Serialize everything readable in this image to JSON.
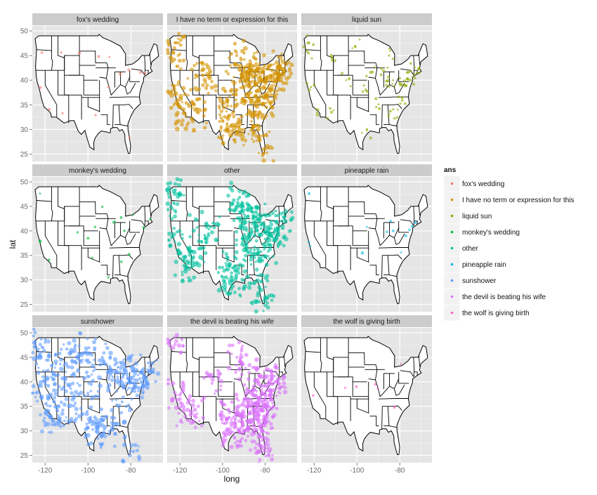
{
  "chart_data": {
    "type": "scatter",
    "xlabel": "long",
    "ylabel": "lat",
    "xlim": [
      -126,
      -65
    ],
    "ylim": [
      23.5,
      51
    ],
    "x_ticks": [
      -120,
      -100,
      -80
    ],
    "y_ticks": [
      25,
      30,
      35,
      40,
      45,
      50
    ],
    "grid": true,
    "legend_position": "right",
    "legend_title": "ans",
    "facet_grid": "3x3",
    "panels": [
      {
        "name": "fox's wedding",
        "color": "#F8766D",
        "density": "sparse",
        "points": [
          [
            -121.5,
            45.6
          ],
          [
            -112.5,
            45.6
          ],
          [
            -104,
            45.5
          ],
          [
            -95,
            44.8
          ],
          [
            -90,
            44.7
          ],
          [
            -85,
            41.3
          ],
          [
            -81,
            42.1
          ],
          [
            -75.5,
            41.6
          ],
          [
            -73.5,
            41.5
          ],
          [
            -122.2,
            38.5
          ],
          [
            -118,
            34.1
          ],
          [
            -111.9,
            33.3
          ],
          [
            -96.5,
            32.9
          ],
          [
            -90.5,
            38.6
          ],
          [
            -80.6,
            28.3
          ]
        ]
      },
      {
        "name": "I have no term or expression for this",
        "color": "#D39200",
        "density": "dense",
        "points": [
          [
            -122.3,
            47.6
          ],
          [
            -122.7,
            45.5
          ],
          [
            -118.3,
            34.1
          ],
          [
            -117.2,
            32.7
          ],
          [
            -121.9,
            37.3
          ],
          [
            -112,
            33.5
          ],
          [
            -105,
            39.7
          ],
          [
            -111.9,
            40.8
          ],
          [
            -97.7,
            30.3
          ],
          [
            -96.8,
            32.8
          ],
          [
            -95.4,
            29.8
          ],
          [
            -90.1,
            29.9
          ],
          [
            -87.6,
            41.9
          ],
          [
            -84.4,
            33.7
          ],
          [
            -83,
            42.3
          ],
          [
            -81.7,
            41.5
          ],
          [
            -80.2,
            25.8
          ],
          [
            -77,
            38.9
          ],
          [
            -75.2,
            40
          ],
          [
            -74,
            40.7
          ],
          [
            -71.1,
            42.4
          ],
          [
            -93.3,
            45
          ],
          [
            -90.2,
            38.6
          ],
          [
            -86.8,
            36.2
          ],
          [
            -86,
            39.8
          ],
          [
            -82.5,
            27.9
          ],
          [
            -80.8,
            35.2
          ],
          [
            -78.6,
            35.8
          ],
          [
            -73.8,
            42.7
          ],
          [
            -84.5,
            39.1
          ],
          [
            -88,
            43
          ],
          [
            -94.6,
            39.1
          ],
          [
            -97.5,
            35.5
          ]
        ]
      },
      {
        "name": "liquid sun",
        "color": "#93AA00",
        "density": "medium",
        "points": [
          [
            -122.3,
            47.6
          ],
          [
            -122.7,
            45.5
          ],
          [
            -121.5,
            38.6
          ],
          [
            -118.2,
            34
          ],
          [
            -112,
            45
          ],
          [
            -105,
            40
          ],
          [
            -100.8,
            46.8
          ],
          [
            -97.3,
            37.7
          ],
          [
            -93.6,
            41.6
          ],
          [
            -90,
            35.1
          ],
          [
            -87.6,
            41.9
          ],
          [
            -86.2,
            39.8
          ],
          [
            -84.4,
            33.7
          ],
          [
            -83.1,
            40
          ],
          [
            -81,
            34
          ],
          [
            -80,
            40.4
          ],
          [
            -78.9,
            35.9
          ],
          [
            -77,
            38.9
          ],
          [
            -75.2,
            40
          ],
          [
            -74,
            40.7
          ],
          [
            -73,
            42.6
          ],
          [
            -71.1,
            42.4
          ],
          [
            -85,
            45
          ],
          [
            -95.4,
            29.8
          ],
          [
            -111.9,
            33.5
          ]
        ]
      },
      {
        "name": "monkey's wedding",
        "color": "#00BA38",
        "density": "sparse",
        "points": [
          [
            -122.4,
            47.6
          ],
          [
            -122.3,
            37.8
          ],
          [
            -122.5,
            38
          ],
          [
            -118.2,
            34.1
          ],
          [
            -104.9,
            39.7
          ],
          [
            -96.7,
            40.8
          ],
          [
            -93.3,
            44.9
          ],
          [
            -88.2,
            41.7
          ],
          [
            -87.6,
            41.9
          ],
          [
            -84.4,
            33.7
          ],
          [
            -84.5,
            42.7
          ],
          [
            -80.8,
            35.2
          ],
          [
            -74,
            40.7
          ],
          [
            -71,
            42.4
          ],
          [
            -90.5,
            30.5
          ],
          [
            -98,
            34.5
          ],
          [
            -83,
            40
          ],
          [
            -79,
            43.2
          ],
          [
            -100,
            38.5
          ]
        ]
      },
      {
        "name": "other",
        "color": "#00C19F",
        "density": "dense",
        "points": [
          [
            -122.4,
            47.6
          ],
          [
            -122.7,
            45.5
          ],
          [
            -122.3,
            37.8
          ],
          [
            -118.2,
            34.1
          ],
          [
            -117.1,
            32.7
          ],
          [
            -112,
            33.5
          ],
          [
            -111.9,
            40.7
          ],
          [
            -104.9,
            39.7
          ],
          [
            -97.7,
            30.3
          ],
          [
            -96.8,
            32.8
          ],
          [
            -95.4,
            29.8
          ],
          [
            -93.3,
            45
          ],
          [
            -90.1,
            29.9
          ],
          [
            -87.6,
            41.9
          ],
          [
            -86.2,
            39.8
          ],
          [
            -84.4,
            33.7
          ],
          [
            -83,
            42.3
          ],
          [
            -81.7,
            41.5
          ],
          [
            -80.2,
            25.8
          ],
          [
            -77,
            38.9
          ],
          [
            -75.2,
            40
          ],
          [
            -74,
            40.7
          ],
          [
            -71.1,
            42.4
          ],
          [
            -78.6,
            35.8
          ],
          [
            -82.5,
            27.9
          ],
          [
            -86.8,
            36.2
          ],
          [
            -90.2,
            38.6
          ],
          [
            -92,
            46.8
          ],
          [
            -88,
            43
          ]
        ]
      },
      {
        "name": "pineapple rain",
        "color": "#00B9E3",
        "density": "sparse",
        "points": [
          [
            -122.4,
            47.6
          ],
          [
            -122.5,
            37.7
          ],
          [
            -95.4,
            40.8
          ],
          [
            -86,
            39.8
          ],
          [
            -84.3,
            42
          ],
          [
            -83.1,
            40
          ],
          [
            -79.4,
            35.6
          ],
          [
            -77.2,
            39
          ],
          [
            -75.5,
            40.2
          ],
          [
            -74.2,
            40.9
          ],
          [
            -72.7,
            41.7
          ],
          [
            -121.8,
            36.9
          ],
          [
            -97.5,
            35.5
          ]
        ]
      },
      {
        "name": "sunshower",
        "color": "#619CFF",
        "density": "dense",
        "points": [
          [
            -122.3,
            47.6
          ],
          [
            -122.7,
            45.5
          ],
          [
            -122.4,
            37.8
          ],
          [
            -118.2,
            34.1
          ],
          [
            -117.2,
            32.7
          ],
          [
            -112,
            33.5
          ],
          [
            -111.9,
            40.7
          ],
          [
            -104.9,
            39.7
          ],
          [
            -106.6,
            35.1
          ],
          [
            -97.7,
            30.3
          ],
          [
            -96.8,
            32.8
          ],
          [
            -95.4,
            29.8
          ],
          [
            -93.3,
            45
          ],
          [
            -90.1,
            29.9
          ],
          [
            -87.6,
            41.9
          ],
          [
            -86.2,
            39.8
          ],
          [
            -84.4,
            33.7
          ],
          [
            -83,
            42.3
          ],
          [
            -81.7,
            41.5
          ],
          [
            -80.2,
            25.8
          ],
          [
            -77,
            38.9
          ],
          [
            -75.2,
            40
          ],
          [
            -74,
            40.7
          ],
          [
            -71.1,
            42.4
          ],
          [
            -100.8,
            46.8
          ],
          [
            -98.5,
            39.5
          ],
          [
            -115,
            43.6
          ],
          [
            -108.5,
            45.8
          ],
          [
            -103.2,
            44.1
          ],
          [
            -119.8,
            39.5
          ]
        ]
      },
      {
        "name": "the devil is beating his wife",
        "color": "#DB72FB",
        "density": "dense",
        "points": [
          [
            -122.3,
            47.6
          ],
          [
            -122.4,
            37.8
          ],
          [
            -118.2,
            34.1
          ],
          [
            -112,
            33.5
          ],
          [
            -104.9,
            39.7
          ],
          [
            -97.7,
            30.3
          ],
          [
            -96.8,
            32.8
          ],
          [
            -95.4,
            29.8
          ],
          [
            -94.5,
            31.5
          ],
          [
            -93.3,
            45
          ],
          [
            -90.1,
            29.9
          ],
          [
            -90,
            35.1
          ],
          [
            -88.1,
            30.7
          ],
          [
            -86.8,
            33.5
          ],
          [
            -86.8,
            36.2
          ],
          [
            -85.7,
            38.3
          ],
          [
            -84.4,
            33.7
          ],
          [
            -83,
            40
          ],
          [
            -82.5,
            27.9
          ],
          [
            -81.7,
            30.3
          ],
          [
            -81.1,
            32.1
          ],
          [
            -80.8,
            35.2
          ],
          [
            -80.2,
            25.8
          ],
          [
            -79.9,
            32.8
          ],
          [
            -78.6,
            35.8
          ],
          [
            -77.4,
            37.5
          ],
          [
            -75.2,
            40
          ],
          [
            -74,
            40.7
          ],
          [
            -87.6,
            41.9
          ]
        ]
      },
      {
        "name": "the wolf is giving birth",
        "color": "#FF61C3",
        "density": "sparse",
        "points": [
          [
            -105.5,
            38.8
          ],
          [
            -100.3,
            39
          ],
          [
            -91.5,
            39.5
          ],
          [
            -90.2,
            38.6
          ],
          [
            -82.5,
            34.8
          ],
          [
            -79.5,
            43.7
          ],
          [
            -120.5,
            37.2
          ]
        ]
      }
    ]
  }
}
